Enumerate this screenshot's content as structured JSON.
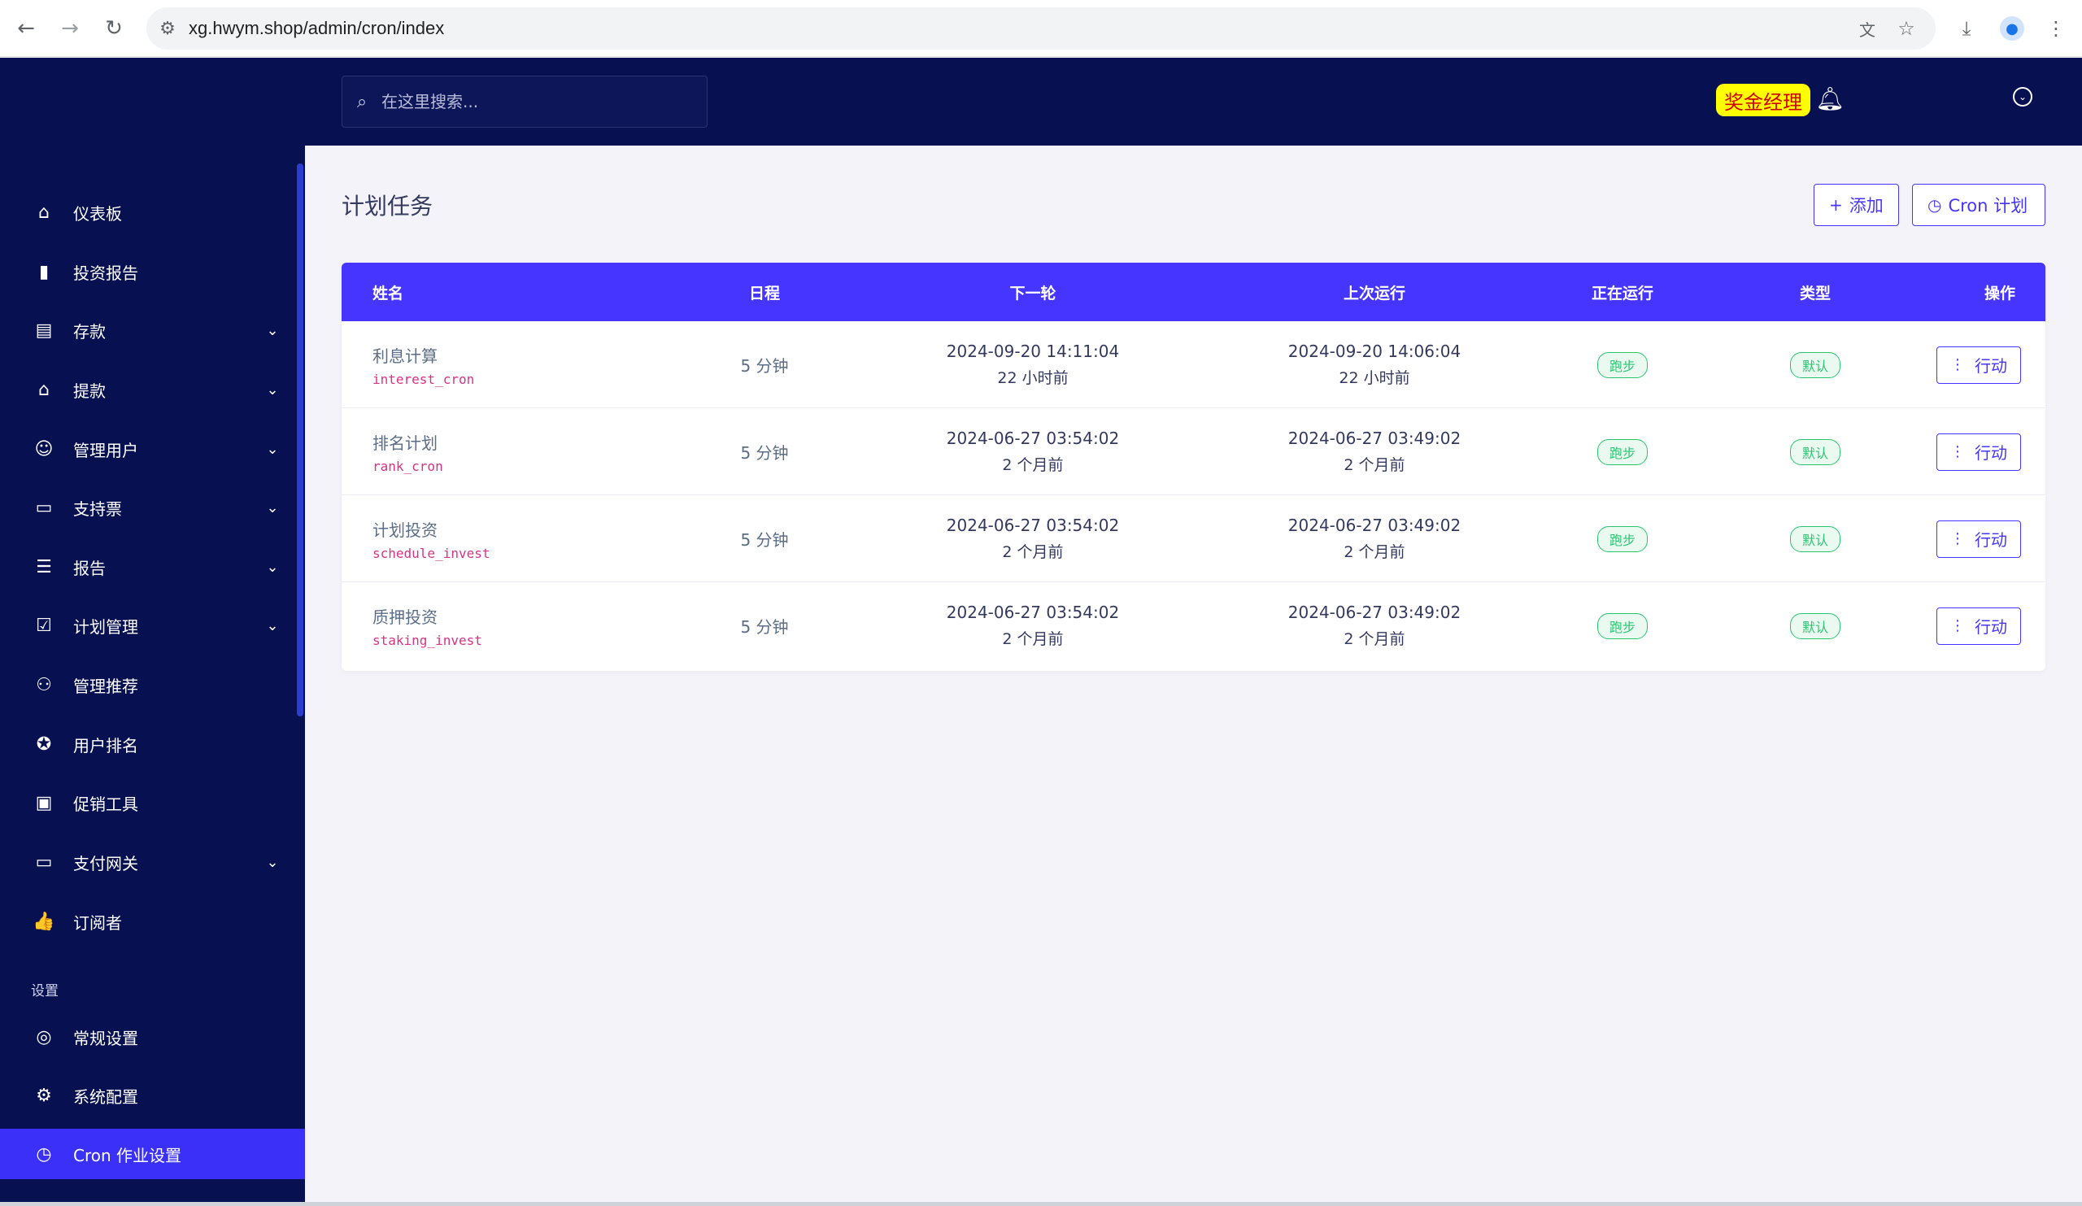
{
  "browser": {
    "url": "xg.hwym.shop/admin/cron/index"
  },
  "sidebar": {
    "items": [
      {
        "label": "仪表板",
        "icon": "home-icon",
        "caret": false
      },
      {
        "label": "投资报告",
        "icon": "bar-chart-icon",
        "caret": false
      },
      {
        "label": "存款",
        "icon": "deposit-file-icon",
        "caret": true
      },
      {
        "label": "提款",
        "icon": "bank-icon",
        "caret": true
      },
      {
        "label": "管理用户",
        "icon": "users-icon",
        "caret": true
      },
      {
        "label": "支持票",
        "icon": "ticket-icon",
        "caret": true
      },
      {
        "label": "报告",
        "icon": "list-icon",
        "caret": true
      },
      {
        "label": "计划管理",
        "icon": "clipboard-icon",
        "caret": true
      },
      {
        "label": "管理推荐",
        "icon": "referral-icon",
        "caret": false
      },
      {
        "label": "用户排名",
        "icon": "medal-icon",
        "caret": false
      },
      {
        "label": "促销工具",
        "icon": "promo-icon",
        "caret": false
      },
      {
        "label": "支付网关",
        "icon": "card-icon",
        "caret": true
      },
      {
        "label": "订阅者",
        "icon": "thumbs-up-icon",
        "caret": false
      }
    ],
    "settings_heading": "设置",
    "settings_items": [
      {
        "label": "常规设置",
        "icon": "lifebuoy-icon"
      },
      {
        "label": "系统配置",
        "icon": "gear-icon"
      },
      {
        "label": "Cron 作业设置",
        "icon": "clock-icon",
        "active": true
      }
    ]
  },
  "header": {
    "search_placeholder": "在这里搜索...",
    "manager_badge": "奖金经理"
  },
  "main": {
    "title": "计划任务",
    "add_button": "添加",
    "cron_button": "Cron 计划",
    "table": {
      "columns": [
        "姓名",
        "日程",
        "下一轮",
        "上次运行",
        "正在运行",
        "类型",
        "操作"
      ],
      "rows": [
        {
          "name": "利息计算",
          "code": "interest_cron",
          "schedule": "5 分钟",
          "next": "2024-09-20 14:11:04",
          "next_ago": "22 小时前",
          "last": "2024-09-20 14:06:04",
          "last_ago": "22 小时前",
          "running": "跑步",
          "type": "默认",
          "action": "行动"
        },
        {
          "name": "排名计划",
          "code": "rank_cron",
          "schedule": "5 分钟",
          "next": "2024-06-27 03:54:02",
          "next_ago": "2 个月前",
          "last": "2024-06-27 03:49:02",
          "last_ago": "2 个月前",
          "running": "跑步",
          "type": "默认",
          "action": "行动"
        },
        {
          "name": "计划投资",
          "code": "schedule_invest",
          "schedule": "5 分钟",
          "next": "2024-06-27 03:54:02",
          "next_ago": "2 个月前",
          "last": "2024-06-27 03:49:02",
          "last_ago": "2 个月前",
          "running": "跑步",
          "type": "默认",
          "action": "行动"
        },
        {
          "name": "质押投资",
          "code": "staking_invest",
          "schedule": "5 分钟",
          "next": "2024-06-27 03:54:02",
          "next_ago": "2 个月前",
          "last": "2024-06-27 03:49:02",
          "last_ago": "2 个月前",
          "running": "跑步",
          "type": "默认",
          "action": "行动"
        }
      ]
    }
  },
  "colors": {
    "sidebar_bg": "#071050",
    "accent": "#4634ff",
    "success": "#28c76f",
    "badge_yellow": "#ffff00"
  }
}
